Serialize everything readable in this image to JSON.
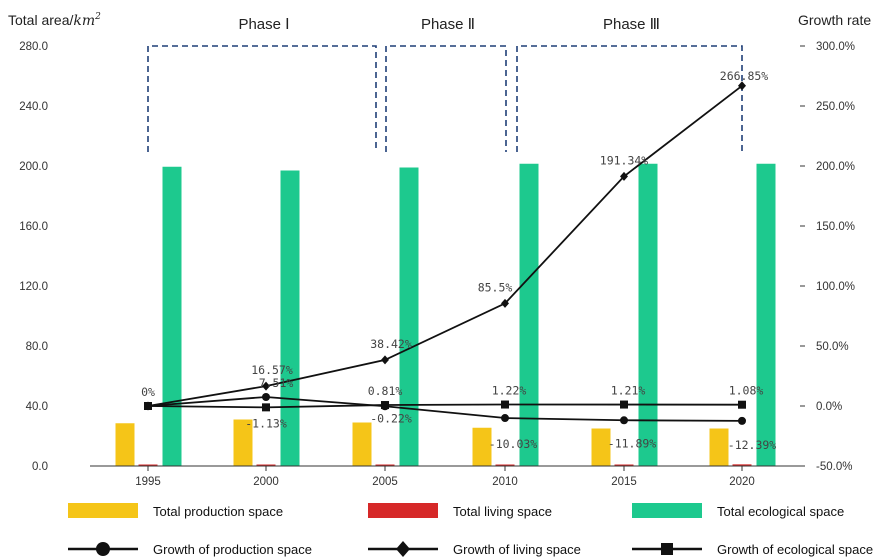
{
  "chart_data": {
    "type": "bar",
    "categories": [
      "1995",
      "2000",
      "2005",
      "2010",
      "2015",
      "2020"
    ],
    "y_left": {
      "title": "Total area/km²",
      "ticks": [
        "0.0",
        "40.0",
        "80.0",
        "120.0",
        "160.0",
        "200.0",
        "240.0",
        "280.0"
      ],
      "range": [
        0,
        280
      ]
    },
    "y_right": {
      "title": "Growth rate",
      "ticks": [
        "-50.0%",
        "0.0%",
        "50.0%",
        "100.0%",
        "150.0%",
        "200.0%",
        "250.0%",
        "300.0%"
      ],
      "range": [
        -50,
        300
      ]
    },
    "phases": [
      {
        "label": "Phase Ⅰ",
        "from": "1995",
        "to": "2005"
      },
      {
        "label": "Phase Ⅱ",
        "from": "2005",
        "to": "2010"
      },
      {
        "label": "Phase Ⅲ",
        "from": "2010",
        "to": "2020"
      }
    ],
    "bar_series": [
      {
        "name": "Total production space",
        "color": "#F5C518",
        "values": [
          28.5,
          31.0,
          29.0,
          25.5,
          25.0,
          25.0
        ]
      },
      {
        "name": "Total living space",
        "color": "#D62828",
        "values": [
          0.2,
          0.3,
          0.4,
          0.7,
          0.9,
          1.1
        ]
      },
      {
        "name": "Total ecological space",
        "color": "#1DC98E",
        "values": [
          199.5,
          197.0,
          199.0,
          201.5,
          201.5,
          201.5
        ]
      }
    ],
    "line_series": [
      {
        "name": "Growth of production space",
        "marker": "circle",
        "values": [
          0,
          7.51,
          -0.22,
          -10.03,
          -11.89,
          -12.39
        ],
        "labels": [
          "0%",
          "7.51%",
          "-0.22%",
          "-10.03%",
          "-11.89%",
          "-12.39%"
        ]
      },
      {
        "name": "Growth of living space",
        "marker": "diamond",
        "values": [
          0,
          16.57,
          38.42,
          85.5,
          191.34,
          266.85
        ],
        "labels": [
          "",
          "16.57%",
          "38.42%",
          "85.5%",
          "191.34%",
          "266.85%"
        ]
      },
      {
        "name": "Growth of ecological space",
        "marker": "square",
        "values": [
          0,
          -1.13,
          0.81,
          1.22,
          1.21,
          1.08
        ],
        "labels": [
          "",
          "-1.13%",
          "0.81%",
          "1.22%",
          "1.21%",
          "1.08%"
        ]
      }
    ]
  }
}
